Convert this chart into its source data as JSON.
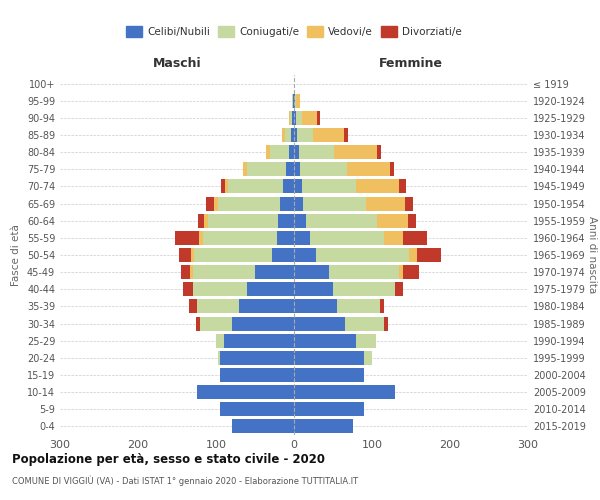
{
  "age_groups": [
    "0-4",
    "5-9",
    "10-14",
    "15-19",
    "20-24",
    "25-29",
    "30-34",
    "35-39",
    "40-44",
    "45-49",
    "50-54",
    "55-59",
    "60-64",
    "65-69",
    "70-74",
    "75-79",
    "80-84",
    "85-89",
    "90-94",
    "95-99",
    "100+"
  ],
  "birth_years": [
    "2015-2019",
    "2010-2014",
    "2005-2009",
    "2000-2004",
    "1995-1999",
    "1990-1994",
    "1985-1989",
    "1980-1984",
    "1975-1979",
    "1970-1974",
    "1965-1969",
    "1960-1964",
    "1955-1959",
    "1950-1954",
    "1945-1949",
    "1940-1944",
    "1935-1939",
    "1930-1934",
    "1925-1929",
    "1920-1924",
    "≤ 1919"
  ],
  "maschi": {
    "celibi": [
      80,
      95,
      125,
      95,
      95,
      90,
      80,
      70,
      60,
      50,
      28,
      22,
      20,
      18,
      14,
      10,
      6,
      4,
      2,
      1,
      0
    ],
    "coniugati": [
      0,
      0,
      0,
      0,
      3,
      10,
      40,
      55,
      70,
      80,
      100,
      95,
      90,
      80,
      70,
      50,
      25,
      8,
      3,
      1,
      0
    ],
    "vedovi": [
      0,
      0,
      0,
      0,
      0,
      0,
      0,
      0,
      0,
      3,
      4,
      5,
      5,
      5,
      5,
      5,
      5,
      3,
      2,
      0,
      0
    ],
    "divorziati": [
      0,
      0,
      0,
      0,
      0,
      0,
      5,
      10,
      12,
      12,
      15,
      30,
      8,
      10,
      5,
      0,
      0,
      0,
      0,
      0,
      0
    ]
  },
  "femmine": {
    "nubili": [
      75,
      90,
      130,
      90,
      90,
      80,
      65,
      55,
      50,
      45,
      28,
      20,
      16,
      12,
      10,
      8,
      6,
      4,
      2,
      1,
      0
    ],
    "coniugate": [
      0,
      0,
      0,
      0,
      10,
      25,
      50,
      55,
      80,
      90,
      120,
      95,
      90,
      80,
      70,
      60,
      45,
      20,
      8,
      2,
      0
    ],
    "vedove": [
      0,
      0,
      0,
      0,
      0,
      0,
      0,
      0,
      0,
      5,
      10,
      25,
      40,
      50,
      55,
      55,
      55,
      40,
      20,
      5,
      0
    ],
    "divorziate": [
      0,
      0,
      0,
      0,
      0,
      0,
      5,
      5,
      10,
      20,
      30,
      30,
      10,
      10,
      8,
      5,
      5,
      5,
      3,
      0,
      0
    ]
  },
  "colors": {
    "celibi": "#4472c4",
    "coniugati": "#c5d9a0",
    "vedovi": "#f0c060",
    "divorziati": "#c0392b"
  },
  "title": "Popolazione per età, sesso e stato civile - 2020",
  "subtitle": "COMUNE DI VIGGIÙ (VA) - Dati ISTAT 1° gennaio 2020 - Elaborazione TUTTITALIA.IT",
  "xlabel_maschi": "Maschi",
  "xlabel_femmine": "Femmine",
  "ylabel_left": "Fasce di età",
  "ylabel_right": "Anni di nascita",
  "xlim": 300,
  "legend_labels": [
    "Celibi/Nubili",
    "Coniugati/e",
    "Vedovi/e",
    "Divorziati/e"
  ],
  "background_color": "#ffffff",
  "xticks": [
    -300,
    -200,
    -100,
    0,
    100,
    200,
    300
  ],
  "xticklabels": [
    "300",
    "200",
    "100",
    "0",
    "100",
    "200",
    "300"
  ]
}
